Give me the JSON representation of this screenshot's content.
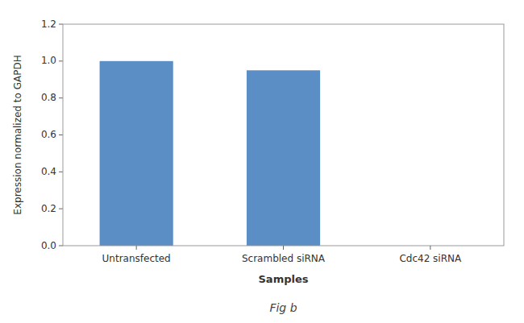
{
  "chart_data": {
    "type": "bar",
    "title": "Fig b",
    "categories": [
      "Untransfected",
      "Scrambled siRNA",
      "Cdc42 siRNA"
    ],
    "values": [
      1.0,
      0.95,
      0.0
    ],
    "color": "#5b8ec4",
    "xlabel": "Samples",
    "ylabel": "Expression normalized to GAPDH",
    "ylim": [
      0,
      1.2
    ],
    "yticks": [
      {
        "value": 0,
        "label": "0.0"
      },
      0.2,
      0.4,
      0.6,
      0.8,
      {
        "value": 1.0,
        "label": "1.0"
      },
      1.2
    ],
    "grid": false
  }
}
